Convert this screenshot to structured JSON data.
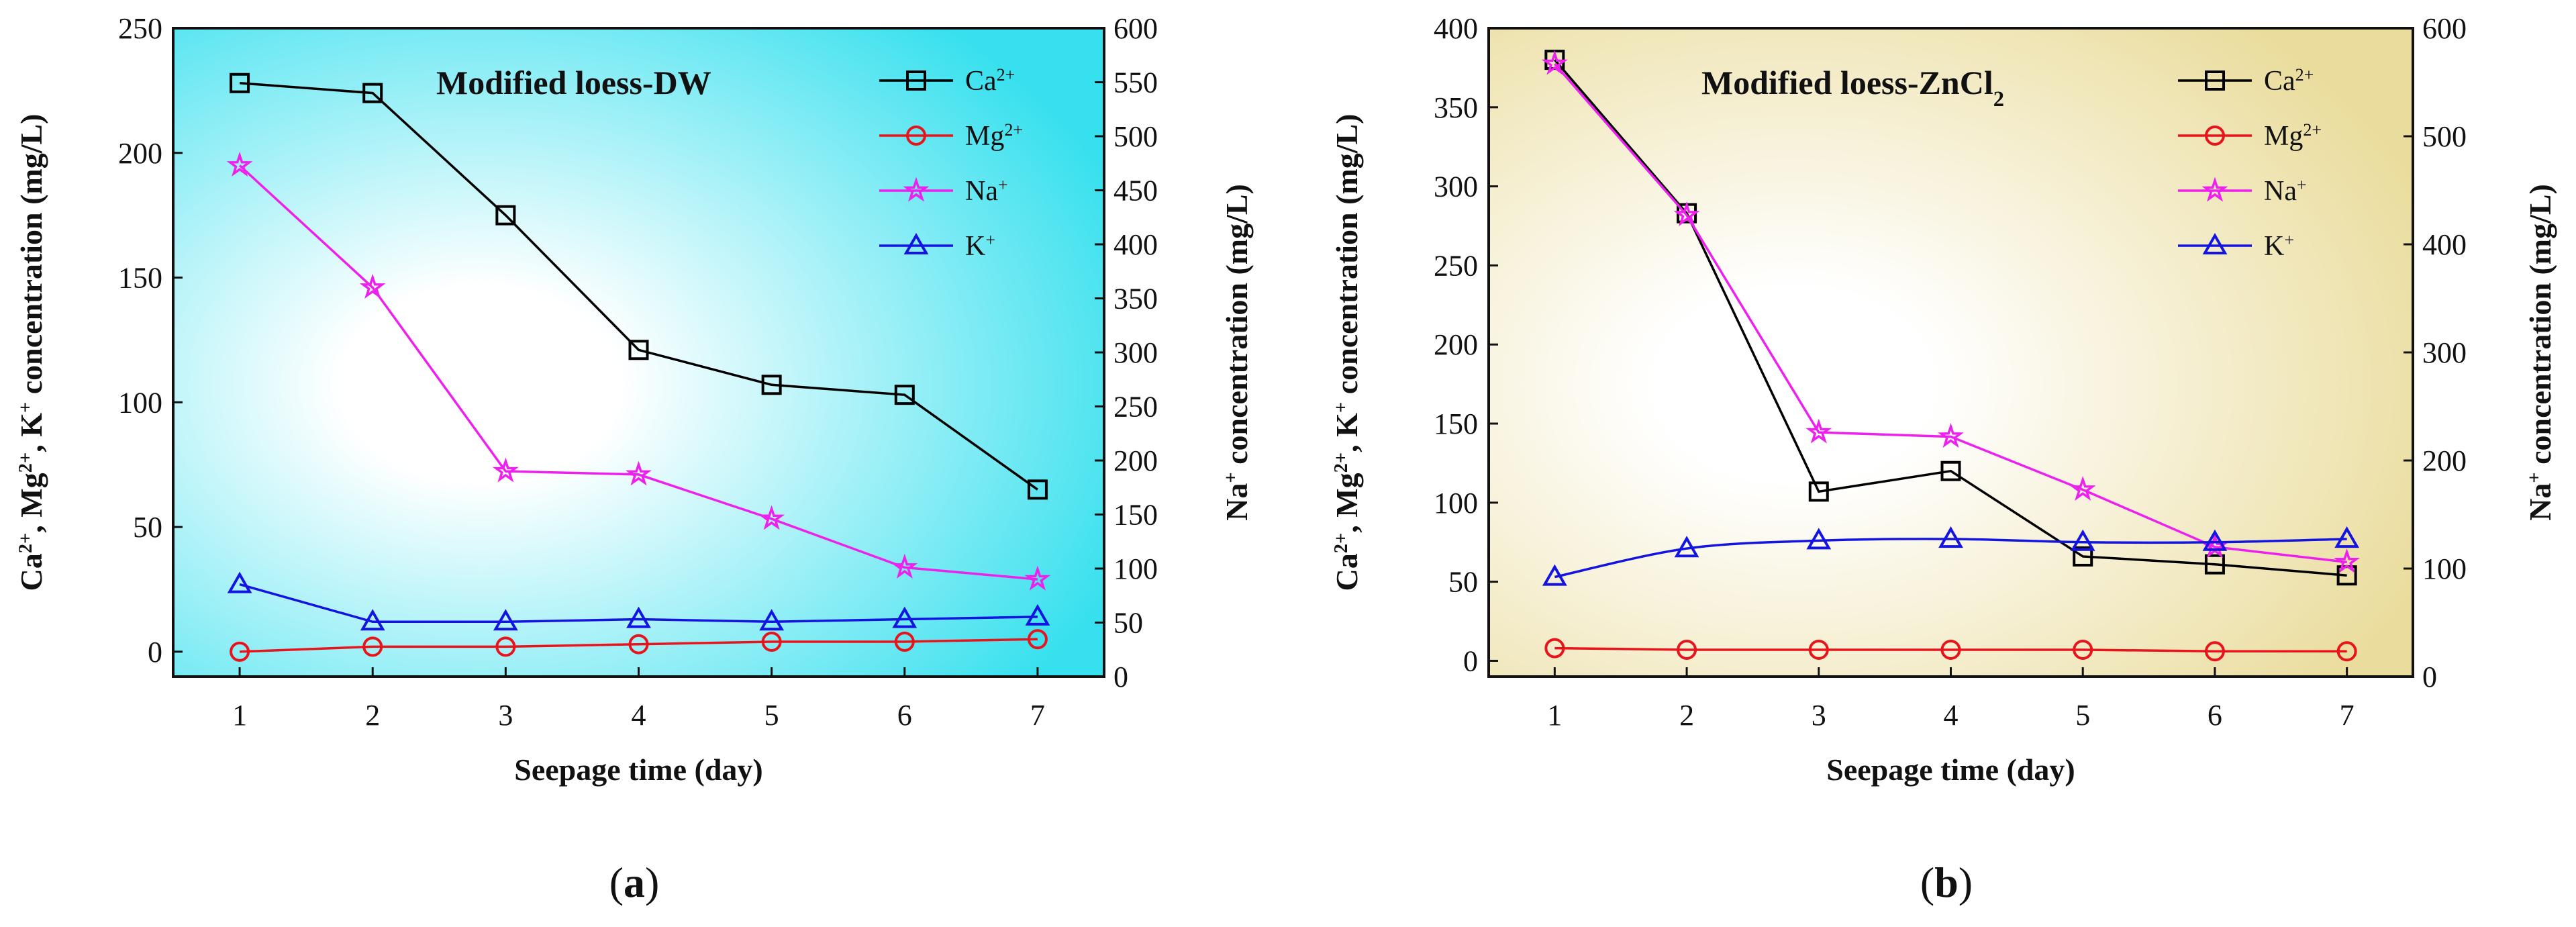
{
  "figure": {
    "charts": [
      {
        "id": "a",
        "title": "Modified loess-DW",
        "bg_color": "#36e0ee",
        "left_label_parts": [
          "Ca",
          "2+",
          ", Mg",
          "2+",
          ", K",
          "+",
          " concentration (mg/L)"
        ],
        "right_label_parts": [
          "Na",
          "+",
          " concentration (mg/L)"
        ],
        "subcaption_letter": "a"
      },
      {
        "id": "b",
        "title_parts": [
          "Modified loess-ZnCl",
          "2"
        ],
        "bg_color": "#eadc9c",
        "left_label_parts": [
          "Ca",
          "2+",
          ", Mg",
          "2+",
          ", K",
          "+",
          " concentration (mg/L)"
        ],
        "right_label_parts": [
          "Na",
          "+",
          " concentration (mg/L)"
        ],
        "subcaption_letter": "b"
      }
    ],
    "legend": [
      {
        "base": "Ca",
        "sup": "2+",
        "color": "#000000",
        "marker": "square"
      },
      {
        "base": "Mg",
        "sup": "2+",
        "color": "#e8141c",
        "marker": "circle"
      },
      {
        "base": "Na",
        "sup": "+",
        "color": "#ee20ee",
        "marker": "star"
      },
      {
        "base": "K",
        "sup": "+",
        "color": "#1414e0",
        "marker": "triangle"
      }
    ]
  },
  "chart_data": [
    {
      "type": "line",
      "title": "Modified loess-DW",
      "xlabel": "Seepage time (day)",
      "ylabel": "Ca2+, Mg2+, K+ concentration (mg/L)",
      "y2label": "Na+ concentration (mg/L)",
      "x": [
        1,
        2,
        3,
        4,
        5,
        6,
        7
      ],
      "xticks": [
        1,
        2,
        3,
        4,
        5,
        6,
        7
      ],
      "xlim": [
        0.5,
        7.5
      ],
      "ylim": [
        -10,
        250
      ],
      "yticks": [
        0,
        50,
        100,
        150,
        200,
        250
      ],
      "y2lim": [
        0,
        600
      ],
      "y2ticks": [
        0,
        50,
        100,
        150,
        200,
        250,
        300,
        350,
        400,
        450,
        500,
        550,
        600
      ],
      "legend_position": "top-right",
      "series": [
        {
          "name": "Ca2+",
          "axis": "left",
          "values": [
            228,
            224,
            175,
            121,
            107,
            103,
            65
          ]
        },
        {
          "name": "Mg2+",
          "axis": "left",
          "values": [
            0,
            2,
            2,
            3,
            4,
            4,
            5
          ]
        },
        {
          "name": "Na+",
          "axis": "right",
          "values": [
            473,
            360,
            190,
            187,
            146,
            101,
            90
          ]
        },
        {
          "name": "K+",
          "axis": "left",
          "values": [
            27,
            12,
            12,
            13,
            12,
            13,
            14
          ]
        }
      ]
    },
    {
      "type": "line",
      "title": "Modified loess-ZnCl2",
      "xlabel": "Seepage time (day)",
      "ylabel": "Ca2+, Mg2+, K+ concentration (mg/L)",
      "y2label": "Na+ concentration (mg/L)",
      "x": [
        1,
        2,
        3,
        4,
        5,
        6,
        7
      ],
      "xticks": [
        1,
        2,
        3,
        4,
        5,
        6,
        7
      ],
      "xlim": [
        0.5,
        7.5
      ],
      "ylim": [
        -10,
        400
      ],
      "yticks": [
        0,
        50,
        100,
        150,
        200,
        250,
        300,
        350,
        400
      ],
      "y2lim": [
        0,
        600
      ],
      "y2ticks": [
        0,
        100,
        200,
        300,
        400,
        500,
        600
      ],
      "legend_position": "top-right",
      "series": [
        {
          "name": "Ca2+",
          "axis": "left",
          "values": [
            380,
            283,
            107,
            120,
            66,
            61,
            54
          ]
        },
        {
          "name": "Mg2+",
          "axis": "left",
          "values": [
            8,
            7,
            7,
            7,
            7,
            6,
            6
          ]
        },
        {
          "name": "Na+",
          "axis": "right",
          "values": [
            567,
            427,
            226,
            222,
            173,
            120,
            106
          ]
        },
        {
          "name": "K+",
          "axis": "left",
          "values": [
            53,
            71,
            76,
            77,
            75,
            75,
            77
          ]
        }
      ]
    }
  ]
}
